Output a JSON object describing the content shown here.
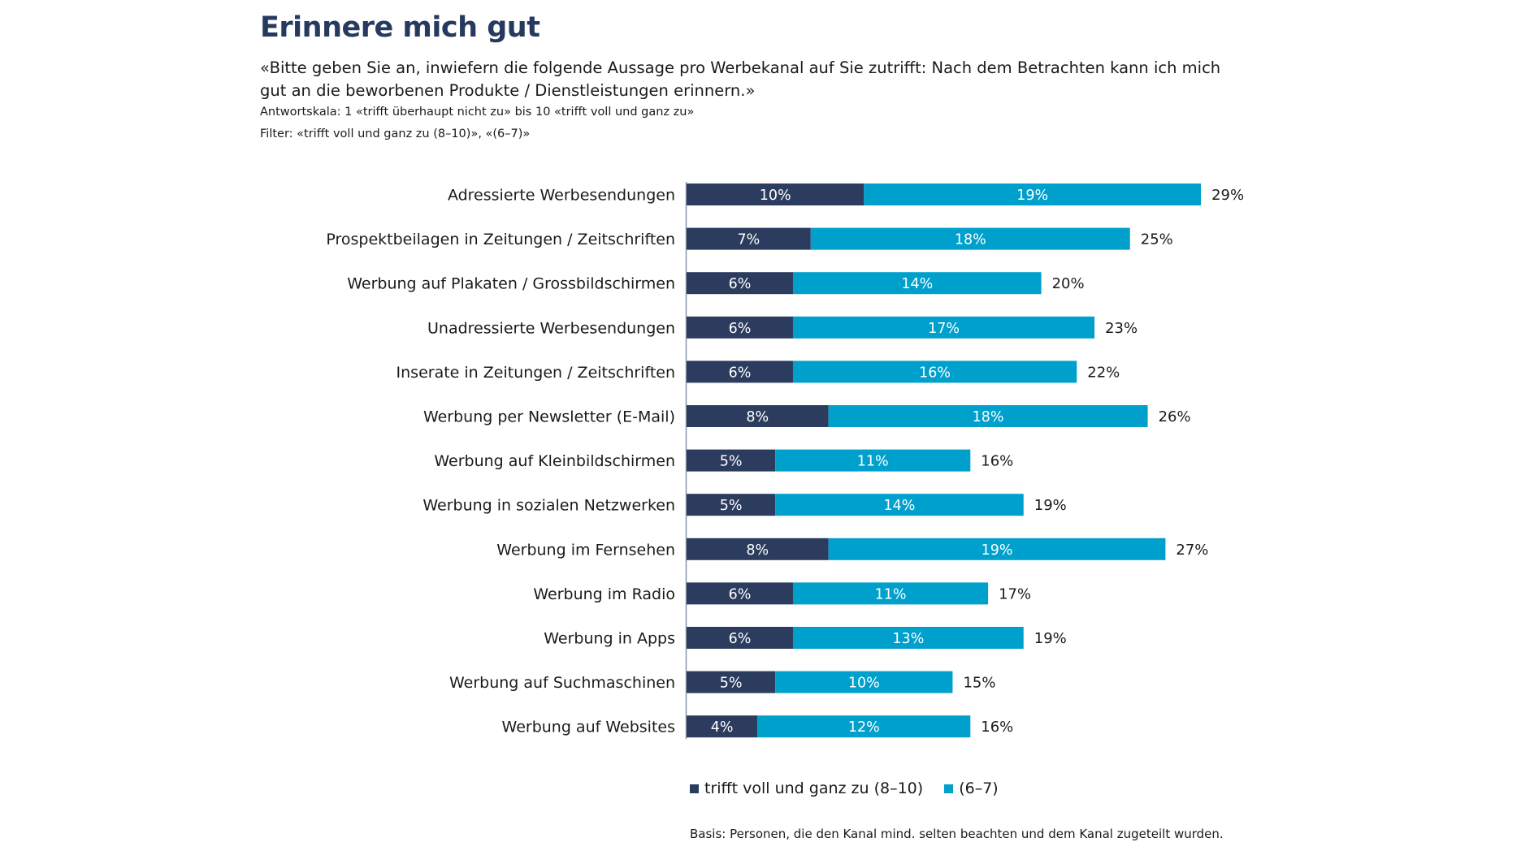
{
  "header": {
    "title": "Erinnere mich gut",
    "subtitle": "«Bitte geben Sie an, inwiefern die folgende Aussage pro Werbekanal auf Sie zutrifft: Nach dem Betrachten kann ich mich gut an die beworbenen Produkte / Dienstleistungen erinnern.»",
    "scale_note": "Antwortskala: 1 «trifft überhaupt nicht zu» bis 10 «trifft voll und ganz zu»",
    "filter_note": "Filter: «trifft voll und ganz zu (8–10)», «(6–7)»"
  },
  "colors": {
    "series_dark": "#2b3c5e",
    "series_light": "#00a0cc",
    "title": "#263a5f"
  },
  "chart_data": {
    "type": "bar",
    "orientation": "horizontal",
    "stacked": true,
    "title": "Erinnere mich gut",
    "xlabel": "",
    "ylabel": "",
    "unit": "%",
    "xlim": [
      0,
      30
    ],
    "grid": false,
    "legend_position": "bottom",
    "categories": [
      "Adressierte Werbesendungen",
      "Prospektbeilagen in Zeitungen / Zeitschriften",
      "Werbung auf Plakaten / Grossbildschirmen",
      "Unadressierte Werbesendungen",
      "Inserate in Zeitungen / Zeitschriften",
      "Werbung per Newsletter (E-Mail)",
      "Werbung auf Kleinbildschirmen",
      "Werbung in sozialen Netzwerken",
      "Werbung im Fernsehen",
      "Werbung im Radio",
      "Werbung in Apps",
      "Werbung auf Suchmaschinen",
      "Werbung auf Websites"
    ],
    "series": [
      {
        "name": "trifft voll und ganz zu (8–10)",
        "color": "#2b3c5e",
        "values": [
          10,
          7,
          6,
          6,
          6,
          8,
          5,
          5,
          8,
          6,
          6,
          5,
          4
        ]
      },
      {
        "name": "(6–7)",
        "color": "#00a0cc",
        "values": [
          19,
          18,
          14,
          17,
          16,
          18,
          11,
          14,
          19,
          11,
          13,
          10,
          12
        ]
      }
    ],
    "totals": [
      29,
      25,
      20,
      23,
      22,
      26,
      16,
      19,
      27,
      17,
      19,
      15,
      16
    ]
  },
  "legend": {
    "items": [
      {
        "label": "trifft voll und ganz zu (8–10)",
        "color": "#2b3c5e"
      },
      {
        "label": "(6–7)",
        "color": "#00a0cc"
      }
    ]
  },
  "footer": {
    "basis": "Basis: Personen, die den Kanal mind. selten beachten und dem Kanal zugeteilt wurden."
  }
}
